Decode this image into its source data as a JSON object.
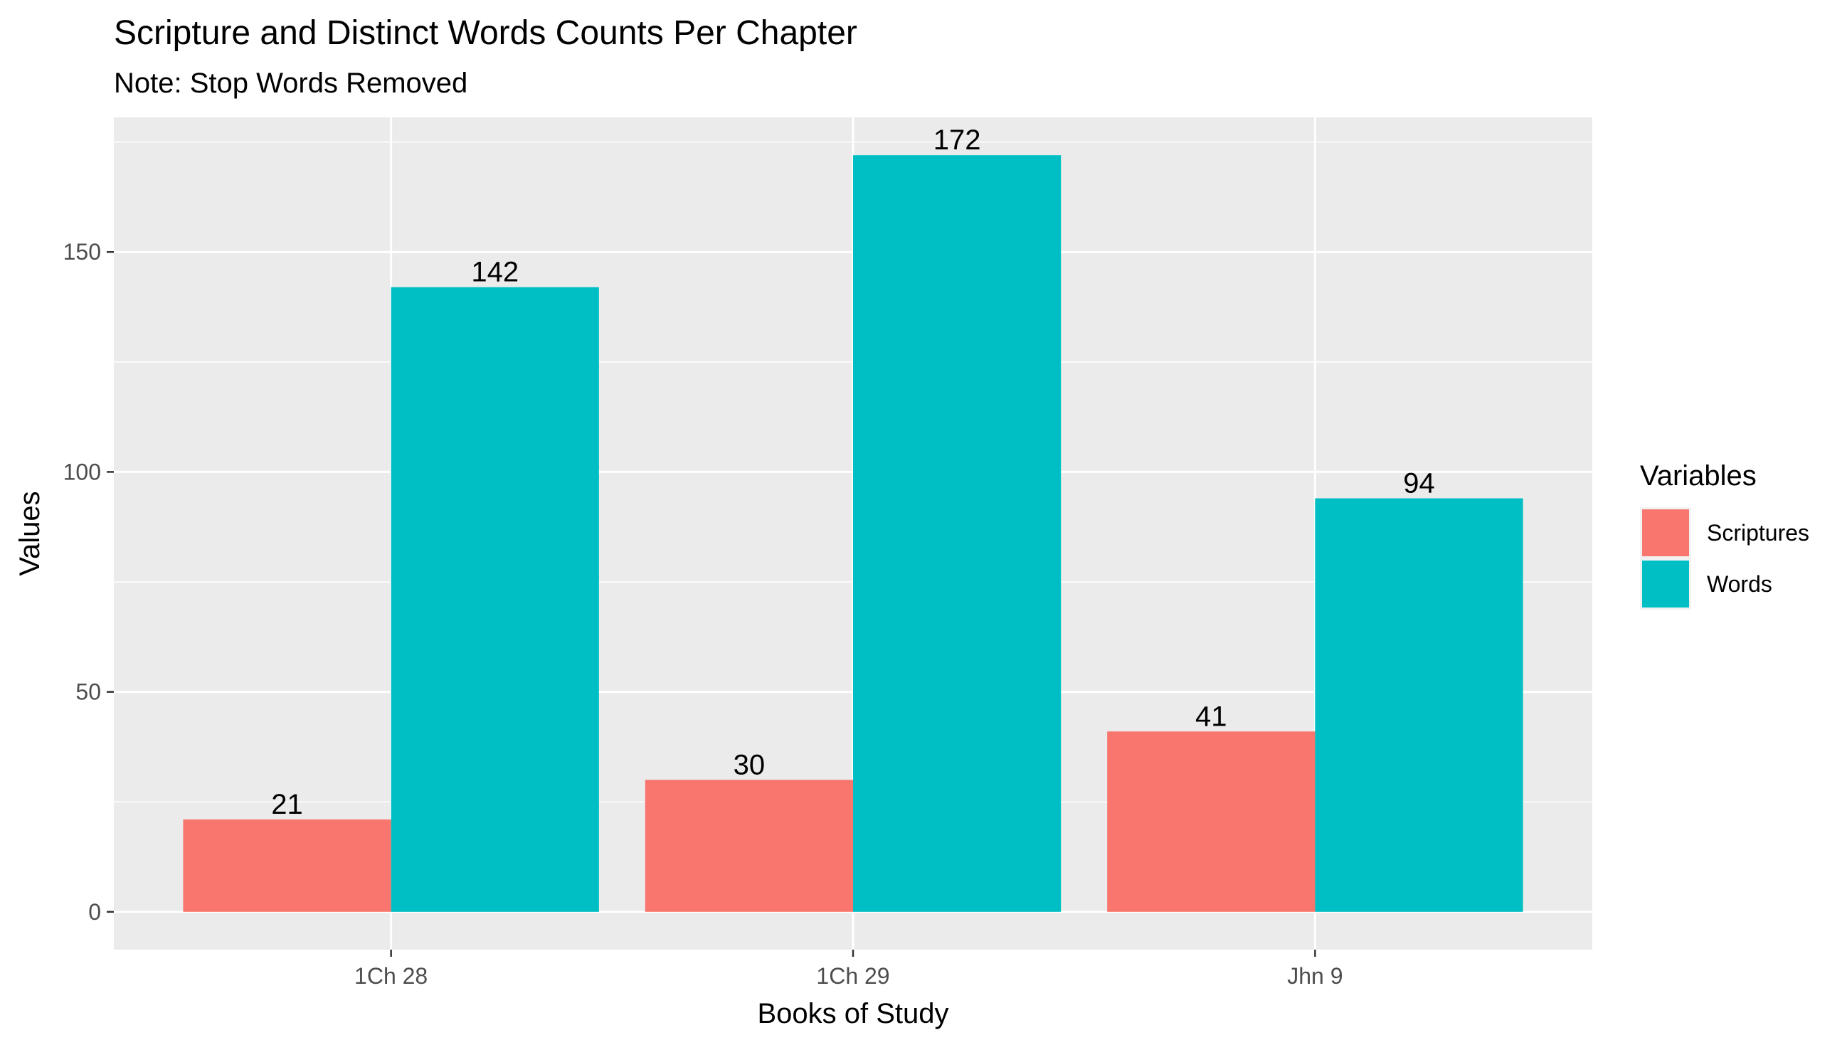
{
  "chart_data": {
    "type": "bar",
    "title": "Scripture and Distinct Words Counts Per Chapter",
    "subtitle": "Note: Stop Words Removed",
    "xlabel": "Books of Study",
    "ylabel": "Values",
    "categories": [
      "1Ch 28",
      "1Ch 29",
      "Jhn 9"
    ],
    "series": [
      {
        "name": "Scriptures",
        "values": [
          21,
          30,
          41
        ],
        "color": "#F8766D"
      },
      {
        "name": "Words",
        "values": [
          142,
          172,
          94
        ],
        "color": "#00BFC4"
      }
    ],
    "ylim": [
      -8.6,
      180.6
    ],
    "yticks": [
      0,
      50,
      100,
      150
    ],
    "grid": true,
    "legend": {
      "title": "Variables",
      "position": "right"
    },
    "panel_background": "#EBEBEB",
    "grid_color": "#FFFFFF"
  }
}
